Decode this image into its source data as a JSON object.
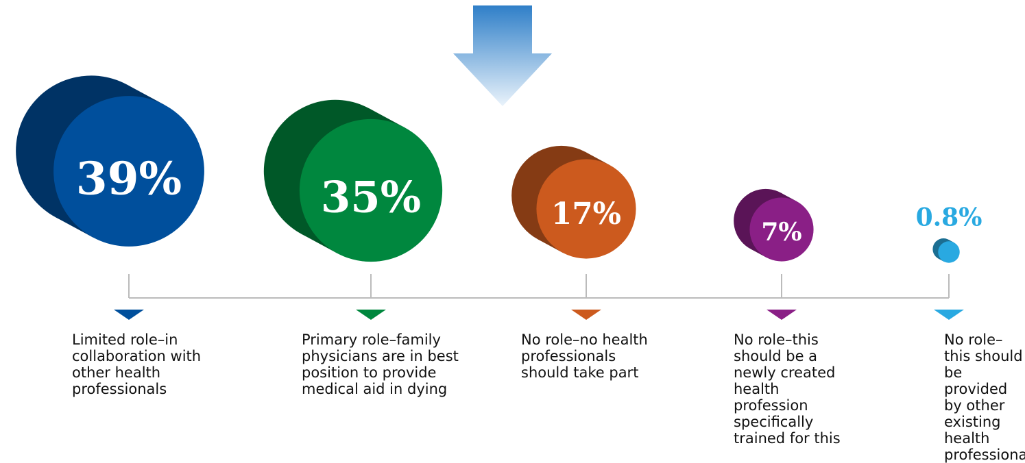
{
  "chart_data": {
    "type": "cylinder",
    "categories": [
      "Limited role–in collaboration with other health professionals",
      "Primary role–family physicians are in best position to provide medical aid in dying",
      "No role–no health professionals should take part",
      "No role–this should be a newly created health profession specifically trained for this",
      "No role–this should be provided by other existing health professionals"
    ],
    "values": [
      39,
      35,
      17,
      7,
      0.8
    ],
    "value_labels": [
      "39%",
      "35%",
      "17%",
      "7%",
      "0.8%"
    ],
    "colors": [
      "#004f9c",
      "#00873e",
      "#cc5a1e",
      "#8a1f86",
      "#29a9e1"
    ]
  }
}
